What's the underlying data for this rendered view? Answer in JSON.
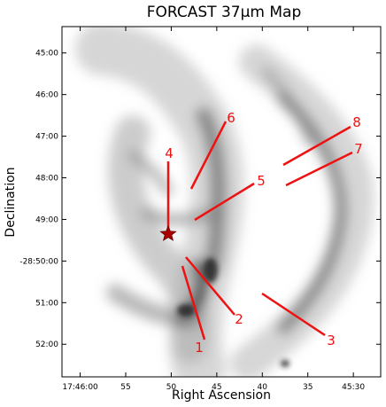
{
  "chart_data": {
    "type": "map",
    "title": "FORCAST 37μm Map",
    "xlabel": "Right Ascension",
    "ylabel": "Declination",
    "xlim": [
      63962,
      63927
    ],
    "xticks": [
      {
        "value": 63960,
        "label": "17:46:00"
      },
      {
        "value": 63955,
        "label": "55"
      },
      {
        "value": 63950,
        "label": "50"
      },
      {
        "value": 63945,
        "label": "45"
      },
      {
        "value": 63940,
        "label": "40"
      },
      {
        "value": 63935,
        "label": "35"
      },
      {
        "value": 63930,
        "label": "45:30"
      }
    ],
    "ylim": [
      -103967,
      -103462
    ],
    "yticks": [
      {
        "value": -103500,
        "label": "45:00"
      },
      {
        "value": -103560,
        "label": "46:00"
      },
      {
        "value": -103620,
        "label": "47:00"
      },
      {
        "value": -103680,
        "label": "48:00"
      },
      {
        "value": -103740,
        "label": "49:00"
      },
      {
        "value": -103800,
        "label": "-28:50:00"
      },
      {
        "value": -103860,
        "label": "51:00"
      },
      {
        "value": -103920,
        "label": "52:00"
      }
    ],
    "cuts": [
      "1",
      "2",
      "3",
      "4",
      "5",
      "6",
      "7",
      "8"
    ]
  }
}
